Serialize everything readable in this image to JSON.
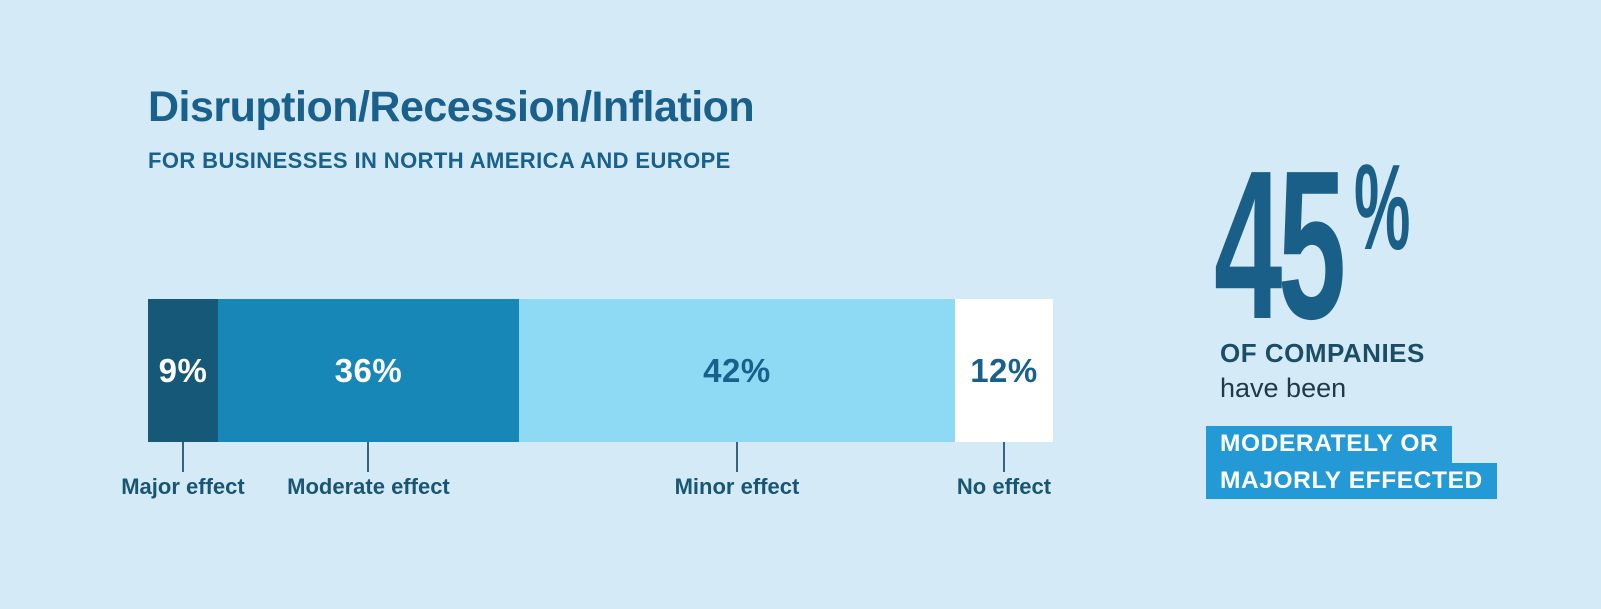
{
  "page": {
    "background_color": "#d4ebf7",
    "accent_dark_blue": "#19618c"
  },
  "header": {
    "title": "Disruption/Recession/Inflation",
    "subtitle": "FOR BUSINESSES IN NORTH AMERICA AND EUROPE"
  },
  "chart_data": {
    "type": "bar",
    "variant": "horizontal-100pct-stacked",
    "title": "Disruption/Recession/Inflation",
    "subtitle": "FOR BUSINESSES IN NORTH AMERICA AND EUROPE",
    "categories": [
      "Major effect",
      "Moderate effect",
      "Minor effect",
      "No effect"
    ],
    "values": [
      9,
      36,
      42,
      12
    ],
    "unit": "%",
    "legend_position": "callout-labels-below-bar-with-ticks",
    "grid": false,
    "tick_color": "#36637f",
    "label_color": "#1a5672",
    "segments": [
      {
        "category": "Major effect",
        "value": 9,
        "label_text": "9%",
        "color": "#155877",
        "text_color": "#ffffff",
        "css": "width:7.73%;background:#155877;color:#ffffff",
        "cell_css": "width:7.73%"
      },
      {
        "category": "Moderate effect",
        "value": 36,
        "label_text": "36%",
        "color": "#1787b8",
        "text_color": "#ffffff",
        "css": "width:33.26%;background:#1787b8;color:#ffffff",
        "cell_css": "width:33.26%"
      },
      {
        "category": "Minor effect",
        "value": 42,
        "label_text": "42%",
        "color": "#8ed9f4",
        "text_color": "#19618c",
        "css": "width:48.18%;background:#8ed9f4;color:#19618c",
        "cell_css": "width:48.18%"
      },
      {
        "category": "No effect",
        "value": 12,
        "label_text": "12%",
        "color": "#ffffff",
        "text_color": "#19618c",
        "css": "width:10.83%;background:#ffffff;color:#19618c",
        "cell_css": "width:10.83%"
      }
    ]
  },
  "stat": {
    "value": "45",
    "percent_sign": "%",
    "number_color": "#1a5f87",
    "caption_line1": "OF COMPANIES",
    "caption_line2": "have been",
    "highlight_lines": [
      "MODERATELY OR",
      "MAJORLY EFFECTED"
    ],
    "highlight_bg": "#2399d6",
    "highlight_text_color": "#ffffff"
  }
}
